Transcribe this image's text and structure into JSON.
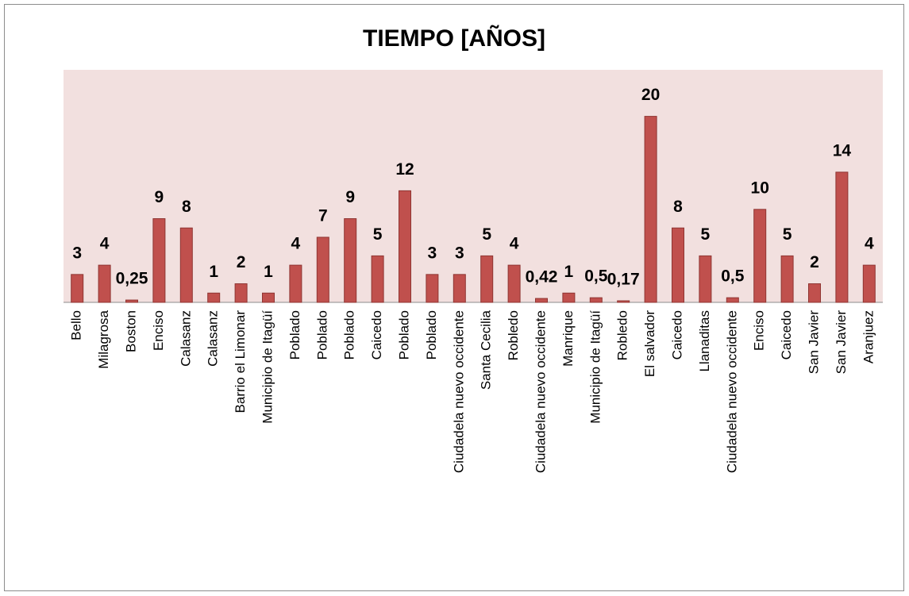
{
  "chart_data": {
    "type": "bar",
    "title": "TIEMPO [AÑOS]",
    "categories": [
      "Bello",
      "Milagrosa",
      "Boston",
      "Enciso",
      "Calasanz",
      "Calasanz",
      "Barrio el Limonar",
      "Municipio de Itagüí",
      "Poblado",
      "Poblado",
      "Poblado",
      "Caicedo",
      "Poblado",
      "Poblado",
      "Ciudadela nuevo occidente",
      "Santa Cecilia",
      "Robledo",
      "Ciudadela nuevo occidente",
      "Manrique",
      "Municipio de Itagüí",
      "Robledo",
      "El salvador",
      "Caicedo",
      "Llanaditas",
      "Ciudadela nuevo occidente",
      "Enciso",
      "Caicedo",
      "San Javier",
      "San Javier",
      "Aranjuez"
    ],
    "values": [
      3,
      4,
      0.25,
      9,
      8,
      1,
      2,
      1,
      4,
      7,
      9,
      5,
      12,
      3,
      3,
      5,
      4,
      0.42,
      1,
      0.5,
      0.17,
      20,
      8,
      5,
      0.5,
      10,
      5,
      2,
      14,
      4
    ],
    "value_labels": [
      "3",
      "4",
      "0,25",
      "9",
      "8",
      "1",
      "2",
      "1",
      "4",
      "7",
      "9",
      "5",
      "12",
      "3",
      "3",
      "5",
      "4",
      "0,42",
      "1",
      "0,5",
      "0,17",
      "20",
      "8",
      "5",
      "0,5",
      "10",
      "5",
      "2",
      "14",
      "4"
    ],
    "color": "#c0504d",
    "ylim": [
      0,
      25
    ]
  }
}
